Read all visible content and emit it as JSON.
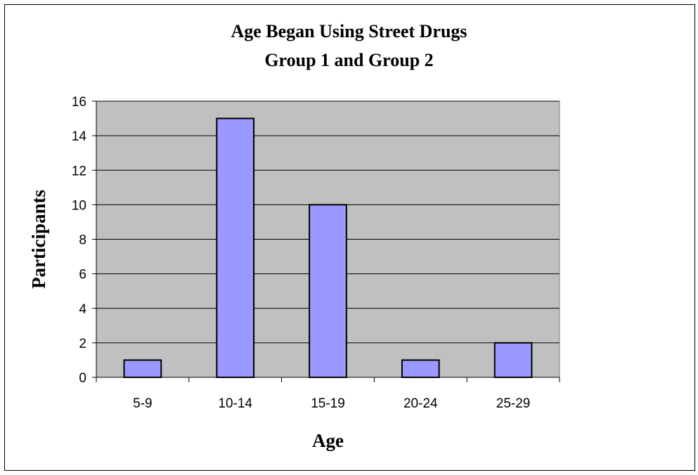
{
  "chart_data": {
    "type": "bar",
    "title": "Age Began Using Street Drugs",
    "subtitle": "Group 1 and Group 2",
    "xlabel": "Age",
    "ylabel": "Participants",
    "categories": [
      "5-9",
      "10-14",
      "15-19",
      "20-24",
      "25-29"
    ],
    "values": [
      1,
      15,
      10,
      1,
      2
    ],
    "ylim": [
      0,
      16
    ],
    "yticks": [
      "0",
      "2",
      "4",
      "6",
      "8",
      "10",
      "12",
      "14",
      "16"
    ],
    "grid": true,
    "legend": "none",
    "colors": {
      "bar_fill": "#9999ff",
      "bar_stroke": "#000000",
      "plot_background": "#c0c0c0",
      "gridline": "#000000"
    }
  }
}
